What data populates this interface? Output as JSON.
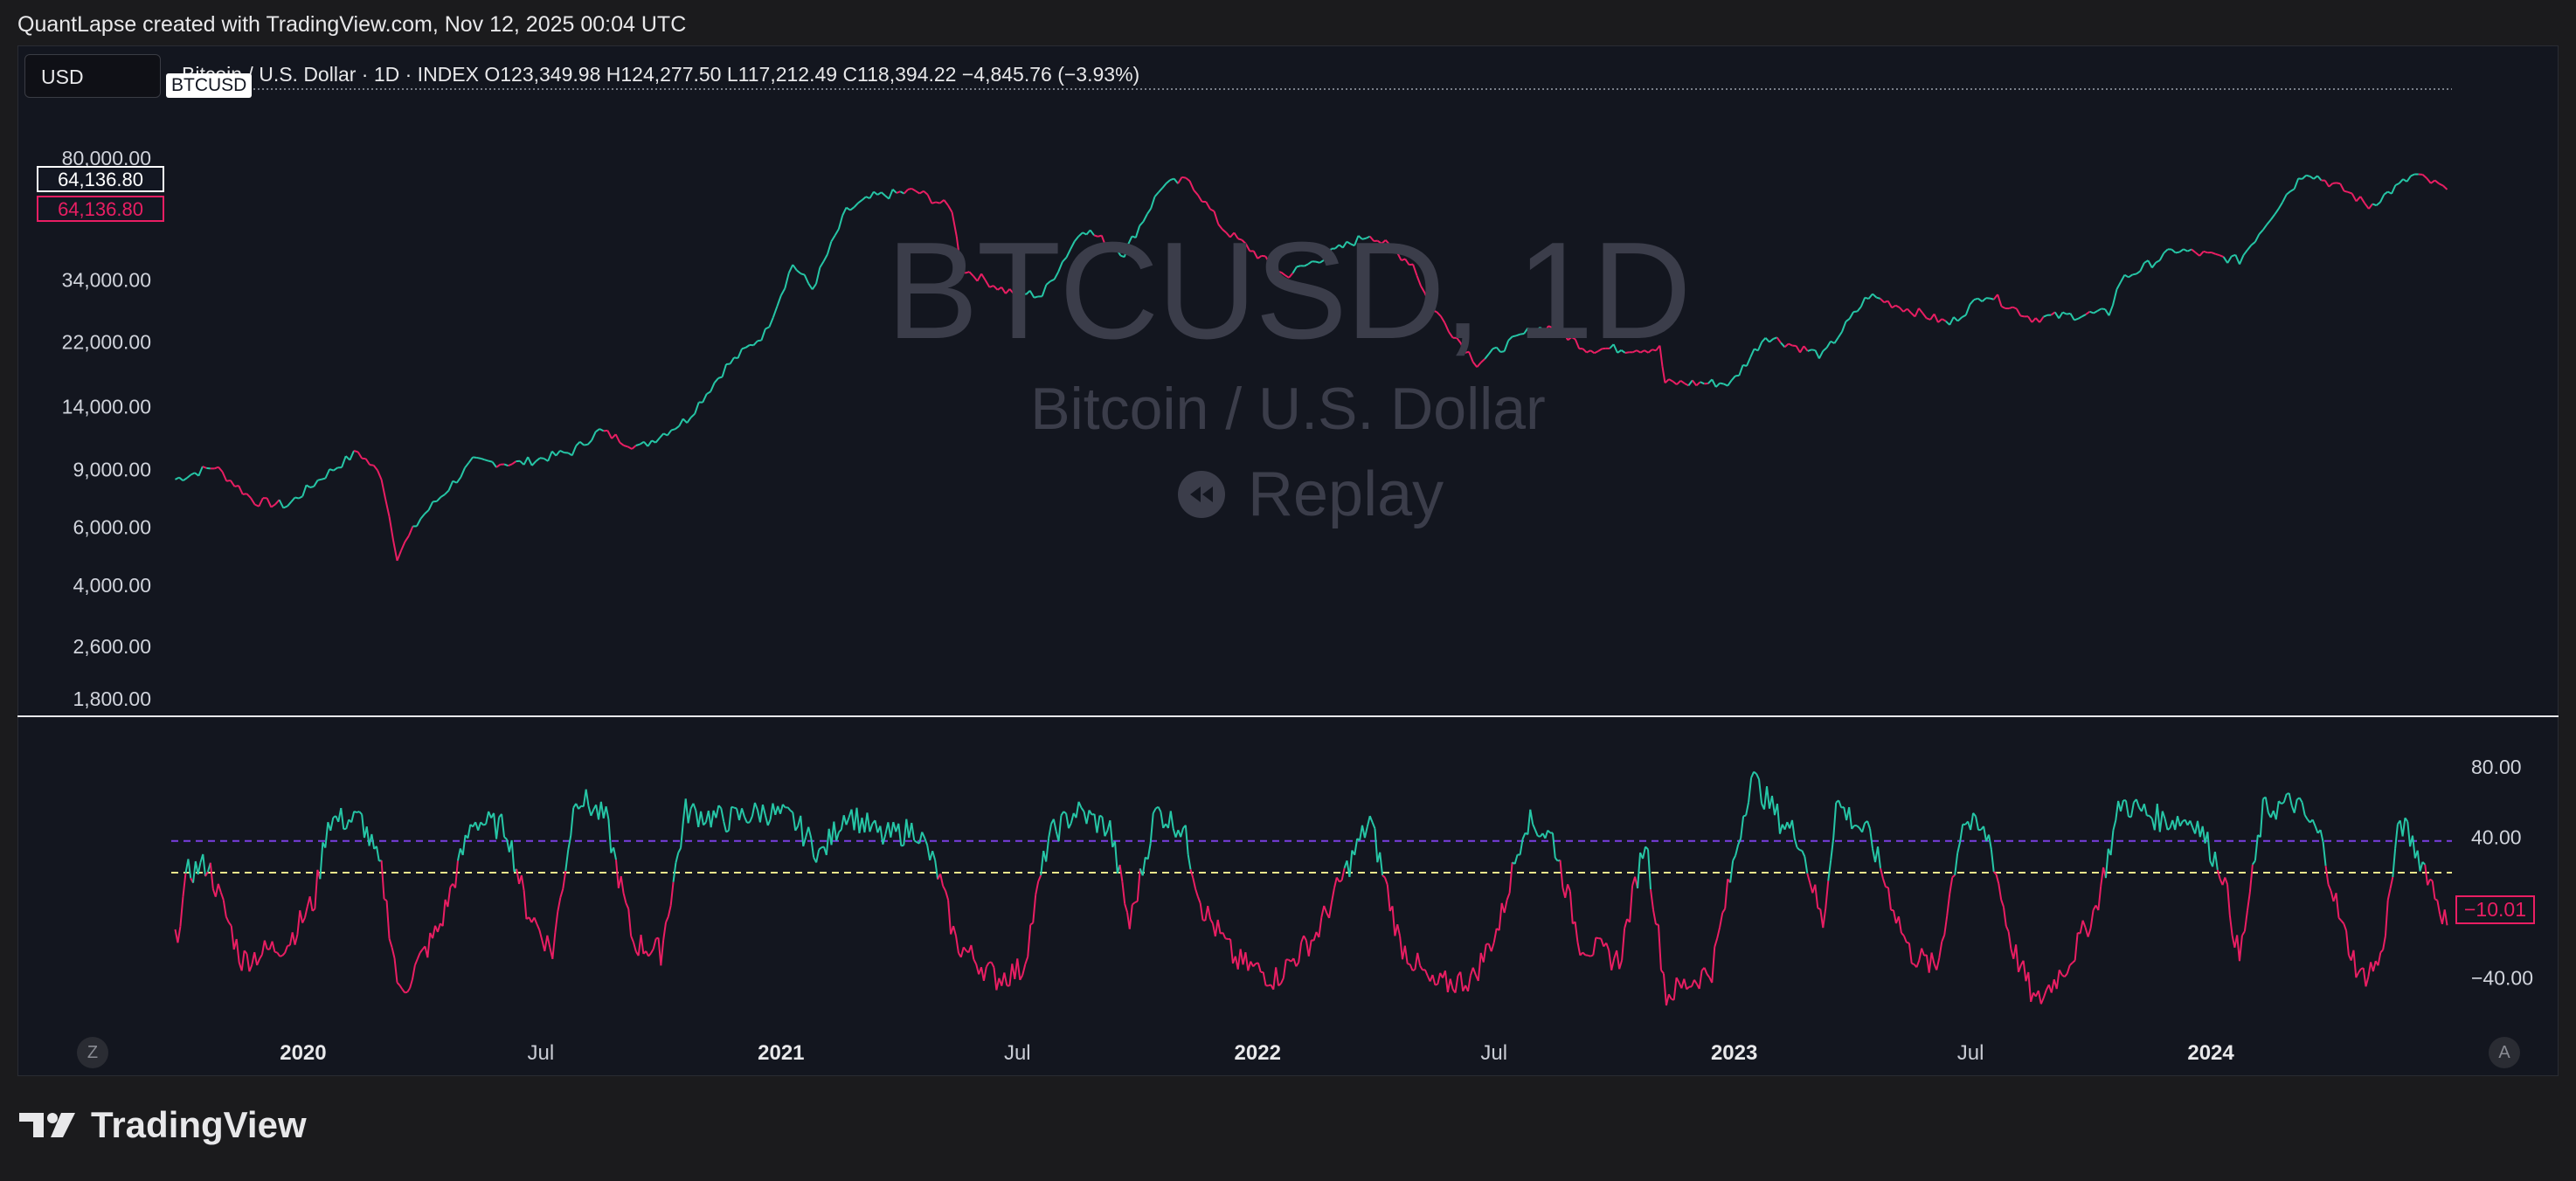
{
  "header": "QuantLapse created with TradingView.com, Nov 12, 2025 00:04 UTC",
  "currency": "USD",
  "symbol_badge": "BTCUSD",
  "legend_text": "Bitcoin / U.S. Dollar · 1D · INDEX  O123,349.98  H124,277.50  L117,212.49  C118,394.22  −4,845.76 (−3.93%)",
  "price_badge_white": "64,136.80",
  "price_badge_pink": "64,136.80",
  "watermark": {
    "title": "BTCUSD, 1D",
    "subtitle": "Bitcoin / U.S. Dollar",
    "replay": "Replay"
  },
  "osc_badge": "−10.01",
  "buttons": {
    "left": "Z",
    "right": "A"
  },
  "logo_text": "TradingView",
  "colors": {
    "up": "#26c6a6",
    "down": "#e91e63",
    "purple_line": "#7b3fe4",
    "yellow_line": "#f0e68c"
  },
  "chart_data": [
    {
      "type": "line",
      "title": "Bitcoin / U.S. Dollar · 1D · INDEX",
      "scale": "log",
      "ylim": [
        1500,
        125000
      ],
      "y_ticks": [
        "80,000.00",
        "34,000.00",
        "22,000.00",
        "14,000.00",
        "9,000.00",
        "6,000.00",
        "4,000.00",
        "2,600.00",
        "1,800.00"
      ],
      "y_tick_values": [
        80000,
        34000,
        22000,
        14000,
        9000,
        6000,
        4000,
        2600,
        1800
      ],
      "x_ticks": [
        "2020",
        "Jul",
        "2021",
        "Jul",
        "2022",
        "Jul",
        "2023",
        "Jul",
        "2024"
      ],
      "x_tick_dates": [
        "2020-01-01",
        "2020-07-01",
        "2021-01-01",
        "2021-07-01",
        "2022-01-01",
        "2022-07-01",
        "2023-01-01",
        "2023-07-01",
        "2024-01-01"
      ],
      "x_range": [
        "2019-09-22",
        "2024-07-05"
      ],
      "series": [
        {
          "points": [
            [
              "2019-09-25",
              8400
            ],
            [
              "2019-10-25",
              9200
            ],
            [
              "2019-11-25",
              7200
            ],
            [
              "2019-12-20",
              7000
            ],
            [
              "2020-01-15",
              8500
            ],
            [
              "2020-02-12",
              10200
            ],
            [
              "2020-03-01",
              8600
            ],
            [
              "2020-03-13",
              4900
            ],
            [
              "2020-03-31",
              6400
            ],
            [
              "2020-05-10",
              9500
            ],
            [
              "2020-06-15",
              9400
            ],
            [
              "2020-07-25",
              10200
            ],
            [
              "2020-08-15",
              11800
            ],
            [
              "2020-09-15",
              10500
            ],
            [
              "2020-10-21",
              12800
            ],
            [
              "2020-11-20",
              18500
            ],
            [
              "2020-12-20",
              23500
            ],
            [
              "2021-01-10",
              38000
            ],
            [
              "2021-01-25",
              32000
            ],
            [
              "2021-02-20",
              55000
            ],
            [
              "2021-03-13",
              61000
            ],
            [
              "2021-04-14",
              63500
            ],
            [
              "2021-05-12",
              56000
            ],
            [
              "2021-05-19",
              37000
            ],
            [
              "2021-06-22",
              31500
            ],
            [
              "2021-07-20",
              30500
            ],
            [
              "2021-08-20",
              49000
            ],
            [
              "2021-09-21",
              41000
            ],
            [
              "2021-10-20",
              66000
            ],
            [
              "2021-11-10",
              68500
            ],
            [
              "2021-12-05",
              49000
            ],
            [
              "2022-01-22",
              35000
            ],
            [
              "2022-03-28",
              47000
            ],
            [
              "2022-04-30",
              38000
            ],
            [
              "2022-05-12",
              29000
            ],
            [
              "2022-06-18",
              19000
            ],
            [
              "2022-07-30",
              24000
            ],
            [
              "2022-08-15",
              24500
            ],
            [
              "2022-09-10",
              21000
            ],
            [
              "2022-11-05",
              21000
            ],
            [
              "2022-11-09",
              16500
            ],
            [
              "2022-12-30",
              16500
            ],
            [
              "2023-01-25",
              23000
            ],
            [
              "2023-03-10",
              20000
            ],
            [
              "2023-04-14",
              30500
            ],
            [
              "2023-06-15",
              25000
            ],
            [
              "2023-07-13",
              31000
            ],
            [
              "2023-08-17",
              26000
            ],
            [
              "2023-10-15",
              27000
            ],
            [
              "2023-10-24",
              34000
            ],
            [
              "2023-12-05",
              42000
            ],
            [
              "2024-01-23",
              39000
            ],
            [
              "2024-02-28",
              62000
            ],
            [
              "2024-03-14",
              73000
            ],
            [
              "2024-04-15",
              63000
            ],
            [
              "2024-05-01",
              57000
            ],
            [
              "2024-06-05",
              71000
            ],
            [
              "2024-06-30",
              64136.8
            ]
          ]
        }
      ]
    },
    {
      "type": "line",
      "title": "",
      "ylim": [
        -70,
        100
      ],
      "y_ticks": [
        "80.00",
        "40.00",
        "0.00",
        "−40.00"
      ],
      "y_tick_values": [
        80,
        40,
        0,
        -40
      ],
      "reference_lines": [
        20,
        38
      ],
      "series": [
        {
          "points": [
            [
              "2019-09-25",
              -20
            ],
            [
              "2019-10-05",
              20
            ],
            [
              "2019-10-20",
              25
            ],
            [
              "2019-11-15",
              -30
            ],
            [
              "2019-12-20",
              -20
            ],
            [
              "2020-01-10",
              5
            ],
            [
              "2020-01-20",
              50
            ],
            [
              "2020-02-15",
              50
            ],
            [
              "2020-03-01",
              20
            ],
            [
              "2020-03-15",
              -50
            ],
            [
              "2020-04-15",
              -10
            ],
            [
              "2020-05-10",
              50
            ],
            [
              "2020-06-05",
              45
            ],
            [
              "2020-06-20",
              0
            ],
            [
              "2020-07-10",
              -25
            ],
            [
              "2020-07-28",
              65
            ],
            [
              "2020-08-20",
              50
            ],
            [
              "2020-09-10",
              -20
            ],
            [
              "2020-10-01",
              -25
            ],
            [
              "2020-10-20",
              55
            ],
            [
              "2020-11-20",
              50
            ],
            [
              "2020-12-20",
              55
            ],
            [
              "2021-01-10",
              50
            ],
            [
              "2021-02-01",
              30
            ],
            [
              "2021-02-20",
              55
            ],
            [
              "2021-03-20",
              40
            ],
            [
              "2021-04-15",
              45
            ],
            [
              "2021-05-01",
              20
            ],
            [
              "2021-05-15",
              -20
            ],
            [
              "2021-06-15",
              -40
            ],
            [
              "2021-07-05",
              -35
            ],
            [
              "2021-07-25",
              40
            ],
            [
              "2021-08-15",
              55
            ],
            [
              "2021-09-10",
              45
            ],
            [
              "2021-09-25",
              -10
            ],
            [
              "2021-10-15",
              55
            ],
            [
              "2021-11-05",
              45
            ],
            [
              "2021-11-20",
              0
            ],
            [
              "2021-12-15",
              -30
            ],
            [
              "2022-01-15",
              -40
            ],
            [
              "2022-02-15",
              -15
            ],
            [
              "2022-03-28",
              50
            ],
            [
              "2022-04-20",
              -20
            ],
            [
              "2022-05-15",
              -45
            ],
            [
              "2022-06-15",
              -40
            ],
            [
              "2022-07-05",
              -10
            ],
            [
              "2022-07-25",
              50
            ],
            [
              "2022-08-15",
              40
            ],
            [
              "2022-09-05",
              -20
            ],
            [
              "2022-10-05",
              -30
            ],
            [
              "2022-10-25",
              40
            ],
            [
              "2022-11-10",
              -50
            ],
            [
              "2022-12-15",
              -35
            ],
            [
              "2023-01-14",
              75
            ],
            [
              "2023-02-05",
              50
            ],
            [
              "2023-02-20",
              40
            ],
            [
              "2023-03-10",
              -10
            ],
            [
              "2023-03-20",
              60
            ],
            [
              "2023-04-15",
              40
            ],
            [
              "2023-05-15",
              -25
            ],
            [
              "2023-06-05",
              -35
            ],
            [
              "2023-06-25",
              50
            ],
            [
              "2023-07-15",
              40
            ],
            [
              "2023-08-01",
              -20
            ],
            [
              "2023-08-20",
              -55
            ],
            [
              "2023-09-15",
              -30
            ],
            [
              "2023-10-05",
              0
            ],
            [
              "2023-10-24",
              60
            ],
            [
              "2023-11-25",
              50
            ],
            [
              "2023-12-20",
              50
            ],
            [
              "2024-01-10",
              20
            ],
            [
              "2024-01-23",
              -30
            ],
            [
              "2024-02-10",
              55
            ],
            [
              "2024-03-05",
              60
            ],
            [
              "2024-03-25",
              40
            ],
            [
              "2024-04-10",
              -10
            ],
            [
              "2024-04-25",
              -40
            ],
            [
              "2024-05-10",
              -30
            ],
            [
              "2024-05-25",
              50
            ],
            [
              "2024-06-15",
              20
            ],
            [
              "2024-06-30",
              -10.01
            ]
          ]
        }
      ]
    }
  ]
}
